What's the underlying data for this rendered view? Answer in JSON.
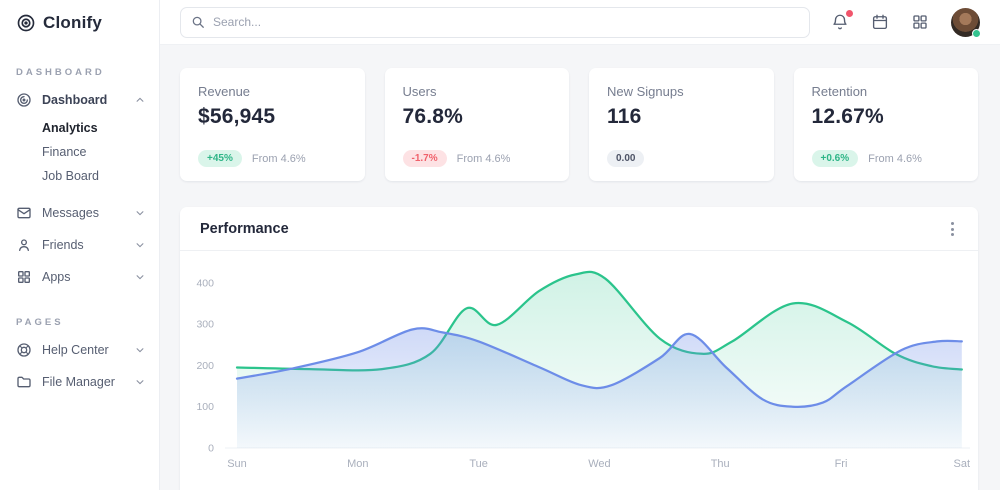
{
  "app": {
    "name": "Clonify"
  },
  "sidebar": {
    "sections": [
      {
        "label": "DASHBOARD",
        "items": [
          {
            "label": "Dashboard",
            "icon": "dashboard-icon",
            "expanded": true,
            "children": [
              {
                "label": "Analytics",
                "active": true
              },
              {
                "label": "Finance"
              },
              {
                "label": "Job Board"
              }
            ]
          },
          {
            "label": "Messages",
            "icon": "messages-icon"
          },
          {
            "label": "Friends",
            "icon": "friends-icon"
          },
          {
            "label": "Apps",
            "icon": "apps-icon"
          }
        ]
      },
      {
        "label": "PAGES",
        "items": [
          {
            "label": "Help Center",
            "icon": "help-icon"
          },
          {
            "label": "File Manager",
            "icon": "folder-icon"
          }
        ]
      }
    ]
  },
  "topbar": {
    "search_placeholder": "Search...",
    "icons": [
      "bell-icon",
      "calendar-icon",
      "apps-grid-icon",
      "avatar"
    ],
    "bell_has_alert": true,
    "avatar_status": "online"
  },
  "stats": [
    {
      "label": "Revenue",
      "value": "$56,945",
      "badge": "+45%",
      "badge_type": "positive",
      "sub": "From 4.6%"
    },
    {
      "label": "Users",
      "value": "76.8%",
      "badge": "-1.7%",
      "badge_type": "negative",
      "sub": "From 4.6%"
    },
    {
      "label": "New Signups",
      "value": "116",
      "badge": "0.00",
      "badge_type": "neutral",
      "sub": ""
    },
    {
      "label": "Retention",
      "value": "12.67%",
      "badge": "+0.6%",
      "badge_type": "positive",
      "sub": "From 4.6%"
    }
  ],
  "performance": {
    "title": "Performance"
  },
  "theme": {
    "page_bg": "#f5f6f8",
    "accent_green": "#34c38f",
    "accent_red": "#f46a6a",
    "alert_red": "#f1556c",
    "text_dark": "#23283a",
    "text_muted": "#767d8f"
  },
  "chart_data": {
    "type": "area",
    "title": "Performance",
    "categories": [
      "Sun",
      "Mon",
      "Tue",
      "Wed",
      "Thu",
      "Fri",
      "Sat"
    ],
    "y_ticks": [
      0,
      100,
      200,
      300,
      400
    ],
    "ylim": [
      0,
      440
    ],
    "xlabel": "",
    "ylabel": "",
    "grid": false,
    "legend": "none",
    "series": [
      {
        "name": "series_green",
        "color": "#2bc48c",
        "points": [
          [
            0,
            195
          ],
          [
            0.6,
            191
          ],
          [
            1.2,
            191
          ],
          [
            1.6,
            228
          ],
          [
            1.9,
            338
          ],
          [
            2.15,
            298
          ],
          [
            2.5,
            380
          ],
          [
            2.8,
            420
          ],
          [
            3.05,
            410
          ],
          [
            3.5,
            265
          ],
          [
            3.85,
            228
          ],
          [
            4.1,
            258
          ],
          [
            4.6,
            350
          ],
          [
            5.05,
            305
          ],
          [
            5.45,
            228
          ],
          [
            5.75,
            198
          ],
          [
            6,
            190
          ]
        ]
      },
      {
        "name": "series_blue",
        "color": "#6d8de8",
        "points": [
          [
            0,
            168
          ],
          [
            0.45,
            192
          ],
          [
            1,
            232
          ],
          [
            1.45,
            287
          ],
          [
            1.7,
            280
          ],
          [
            2,
            258
          ],
          [
            2.5,
            196
          ],
          [
            2.85,
            152
          ],
          [
            3.1,
            152
          ],
          [
            3.5,
            218
          ],
          [
            3.75,
            276
          ],
          [
            4.05,
            195
          ],
          [
            4.35,
            118
          ],
          [
            4.6,
            100
          ],
          [
            4.85,
            110
          ],
          [
            5.05,
            150
          ],
          [
            5.5,
            237
          ],
          [
            5.8,
            258
          ],
          [
            6,
            258
          ]
        ]
      }
    ]
  }
}
